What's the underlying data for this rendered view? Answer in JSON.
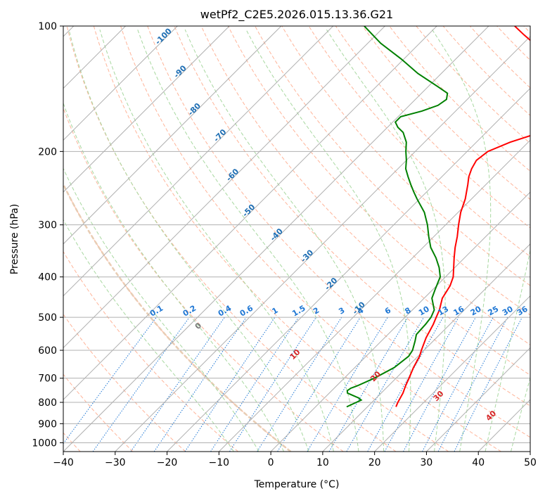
{
  "chart_data": {
    "type": "line",
    "title": "wetPf2_C2E5.2026.015.13.36.G21",
    "xlabel": "Temperature (°C)",
    "ylabel": "Pressure (hPa)",
    "xlim": [
      -40,
      50
    ],
    "ylim": [
      1050,
      100
    ],
    "y_scale": "log",
    "skew": true,
    "grid": true,
    "x_ticks": [
      -40,
      -30,
      -20,
      -10,
      0,
      10,
      20,
      30,
      40,
      50
    ],
    "x_tick_labels": [
      "−40",
      "−30",
      "−20",
      "−10",
      "0",
      "10",
      "20",
      "30",
      "40",
      "50"
    ],
    "y_ticks": [
      1000,
      900,
      800,
      700,
      600,
      500,
      400,
      300,
      200,
      100
    ],
    "y_tick_labels": [
      "1000",
      "900",
      "800",
      "700",
      "600",
      "500",
      "400",
      "300",
      "200",
      "100"
    ],
    "series": [
      {
        "role": "temperature",
        "color": "#ff0000",
        "points": [
          [
            820,
            15.5
          ],
          [
            800,
            15.0
          ],
          [
            760,
            14.2
          ],
          [
            730,
            13.3
          ],
          [
            700,
            12.5
          ],
          [
            660,
            11.3
          ],
          [
            620,
            10.3
          ],
          [
            600,
            9.5
          ],
          [
            560,
            8.0
          ],
          [
            520,
            6.8
          ],
          [
            500,
            6.0
          ],
          [
            480,
            5.2
          ],
          [
            450,
            3.5
          ],
          [
            420,
            2.6
          ],
          [
            400,
            1.5
          ],
          [
            380,
            -0.2
          ],
          [
            360,
            -2.0
          ],
          [
            340,
            -3.8
          ],
          [
            320,
            -5.5
          ],
          [
            300,
            -7.5
          ],
          [
            280,
            -9.5
          ],
          [
            260,
            -11.2
          ],
          [
            240,
            -13.5
          ],
          [
            230,
            -14.8
          ],
          [
            220,
            -15.8
          ],
          [
            210,
            -16.5
          ],
          [
            200,
            -16.0
          ],
          [
            190,
            -13.5
          ],
          [
            180,
            -9.5
          ],
          [
            170,
            -7.5
          ],
          [
            160,
            -7.8
          ],
          [
            150,
            -8.5
          ],
          [
            140,
            -10.5
          ],
          [
            130,
            -14.5
          ],
          [
            120,
            -20.0
          ],
          [
            115,
            -23.5
          ],
          [
            110,
            -28.0
          ],
          [
            105,
            -31.5
          ],
          [
            100,
            -35.0
          ]
        ]
      },
      {
        "role": "dewpoint",
        "color": "#008000",
        "points": [
          [
            820,
            6.0
          ],
          [
            800,
            7.0
          ],
          [
            790,
            7.5
          ],
          [
            780,
            6.5
          ],
          [
            770,
            5.0
          ],
          [
            760,
            3.5
          ],
          [
            750,
            3.0
          ],
          [
            740,
            3.2
          ],
          [
            730,
            4.0
          ],
          [
            700,
            5.8
          ],
          [
            660,
            7.6
          ],
          [
            620,
            8.2
          ],
          [
            600,
            7.8
          ],
          [
            570,
            6.5
          ],
          [
            550,
            5.5
          ],
          [
            520,
            5.3
          ],
          [
            500,
            5.0
          ],
          [
            480,
            4.2
          ],
          [
            450,
            1.5
          ],
          [
            430,
            0.5
          ],
          [
            410,
            -0.5
          ],
          [
            400,
            -1.0
          ],
          [
            380,
            -3.0
          ],
          [
            360,
            -5.5
          ],
          [
            340,
            -8.5
          ],
          [
            320,
            -11.0
          ],
          [
            300,
            -13.5
          ],
          [
            280,
            -16.5
          ],
          [
            260,
            -20.5
          ],
          [
            250,
            -22.5
          ],
          [
            240,
            -24.5
          ],
          [
            230,
            -26.5
          ],
          [
            220,
            -28.5
          ],
          [
            210,
            -30.0
          ],
          [
            200,
            -31.8
          ],
          [
            190,
            -33.5
          ],
          [
            180,
            -36.0
          ],
          [
            175,
            -38.0
          ],
          [
            170,
            -39.5
          ],
          [
            165,
            -39.5
          ],
          [
            160,
            -36.5
          ],
          [
            155,
            -34.5
          ],
          [
            150,
            -34.0
          ],
          [
            145,
            -35.0
          ],
          [
            140,
            -38.0
          ],
          [
            130,
            -44.5
          ],
          [
            120,
            -50.5
          ],
          [
            110,
            -57.5
          ],
          [
            100,
            -64.0
          ]
        ]
      }
    ],
    "mixing_ratio_labels": [
      "0.1",
      "0.2",
      "0.4",
      "0.6",
      "1",
      "1.5",
      "2",
      "3",
      "4",
      "6",
      "8",
      "10",
      "13",
      "16",
      "20",
      "25",
      "30",
      "36"
    ],
    "mixing_ratios": [
      0.1,
      0.2,
      0.4,
      0.6,
      1,
      1.5,
      2,
      3,
      4,
      6,
      8,
      10,
      13,
      16,
      20,
      25,
      30,
      36
    ],
    "moist_adiabat_labels": [
      "0",
      "10",
      "20",
      "30",
      "40"
    ],
    "moist_adiabat_temps": [
      0,
      10,
      20,
      30,
      40
    ],
    "moist_adiabat_label_pressures": [
      530,
      620,
      700,
      780,
      870
    ],
    "dry_adiabat_labels": [
      "-100",
      "-90",
      "-80",
      "-70",
      "-60",
      "-50",
      "-40",
      "-30",
      "-20",
      "-10"
    ],
    "dry_adiabat_label_pressures": [
      107,
      130,
      160,
      185,
      230,
      280,
      320,
      360,
      420,
      480
    ],
    "colors": {
      "temperature": "#ff0000",
      "dewpoint": "#008000",
      "isotherm": "#b0b0b0",
      "isobar": "#b0b0b0",
      "dry_adiabat": "#ffb499",
      "moist_adiabat": "#a8d8a0",
      "mixing_ratio": "#1f77d4",
      "dry_label": "#1f6fb4",
      "moist_label": "#d62728",
      "zero_label": "#777777",
      "special_adiabat": "#e8cdb4"
    }
  }
}
